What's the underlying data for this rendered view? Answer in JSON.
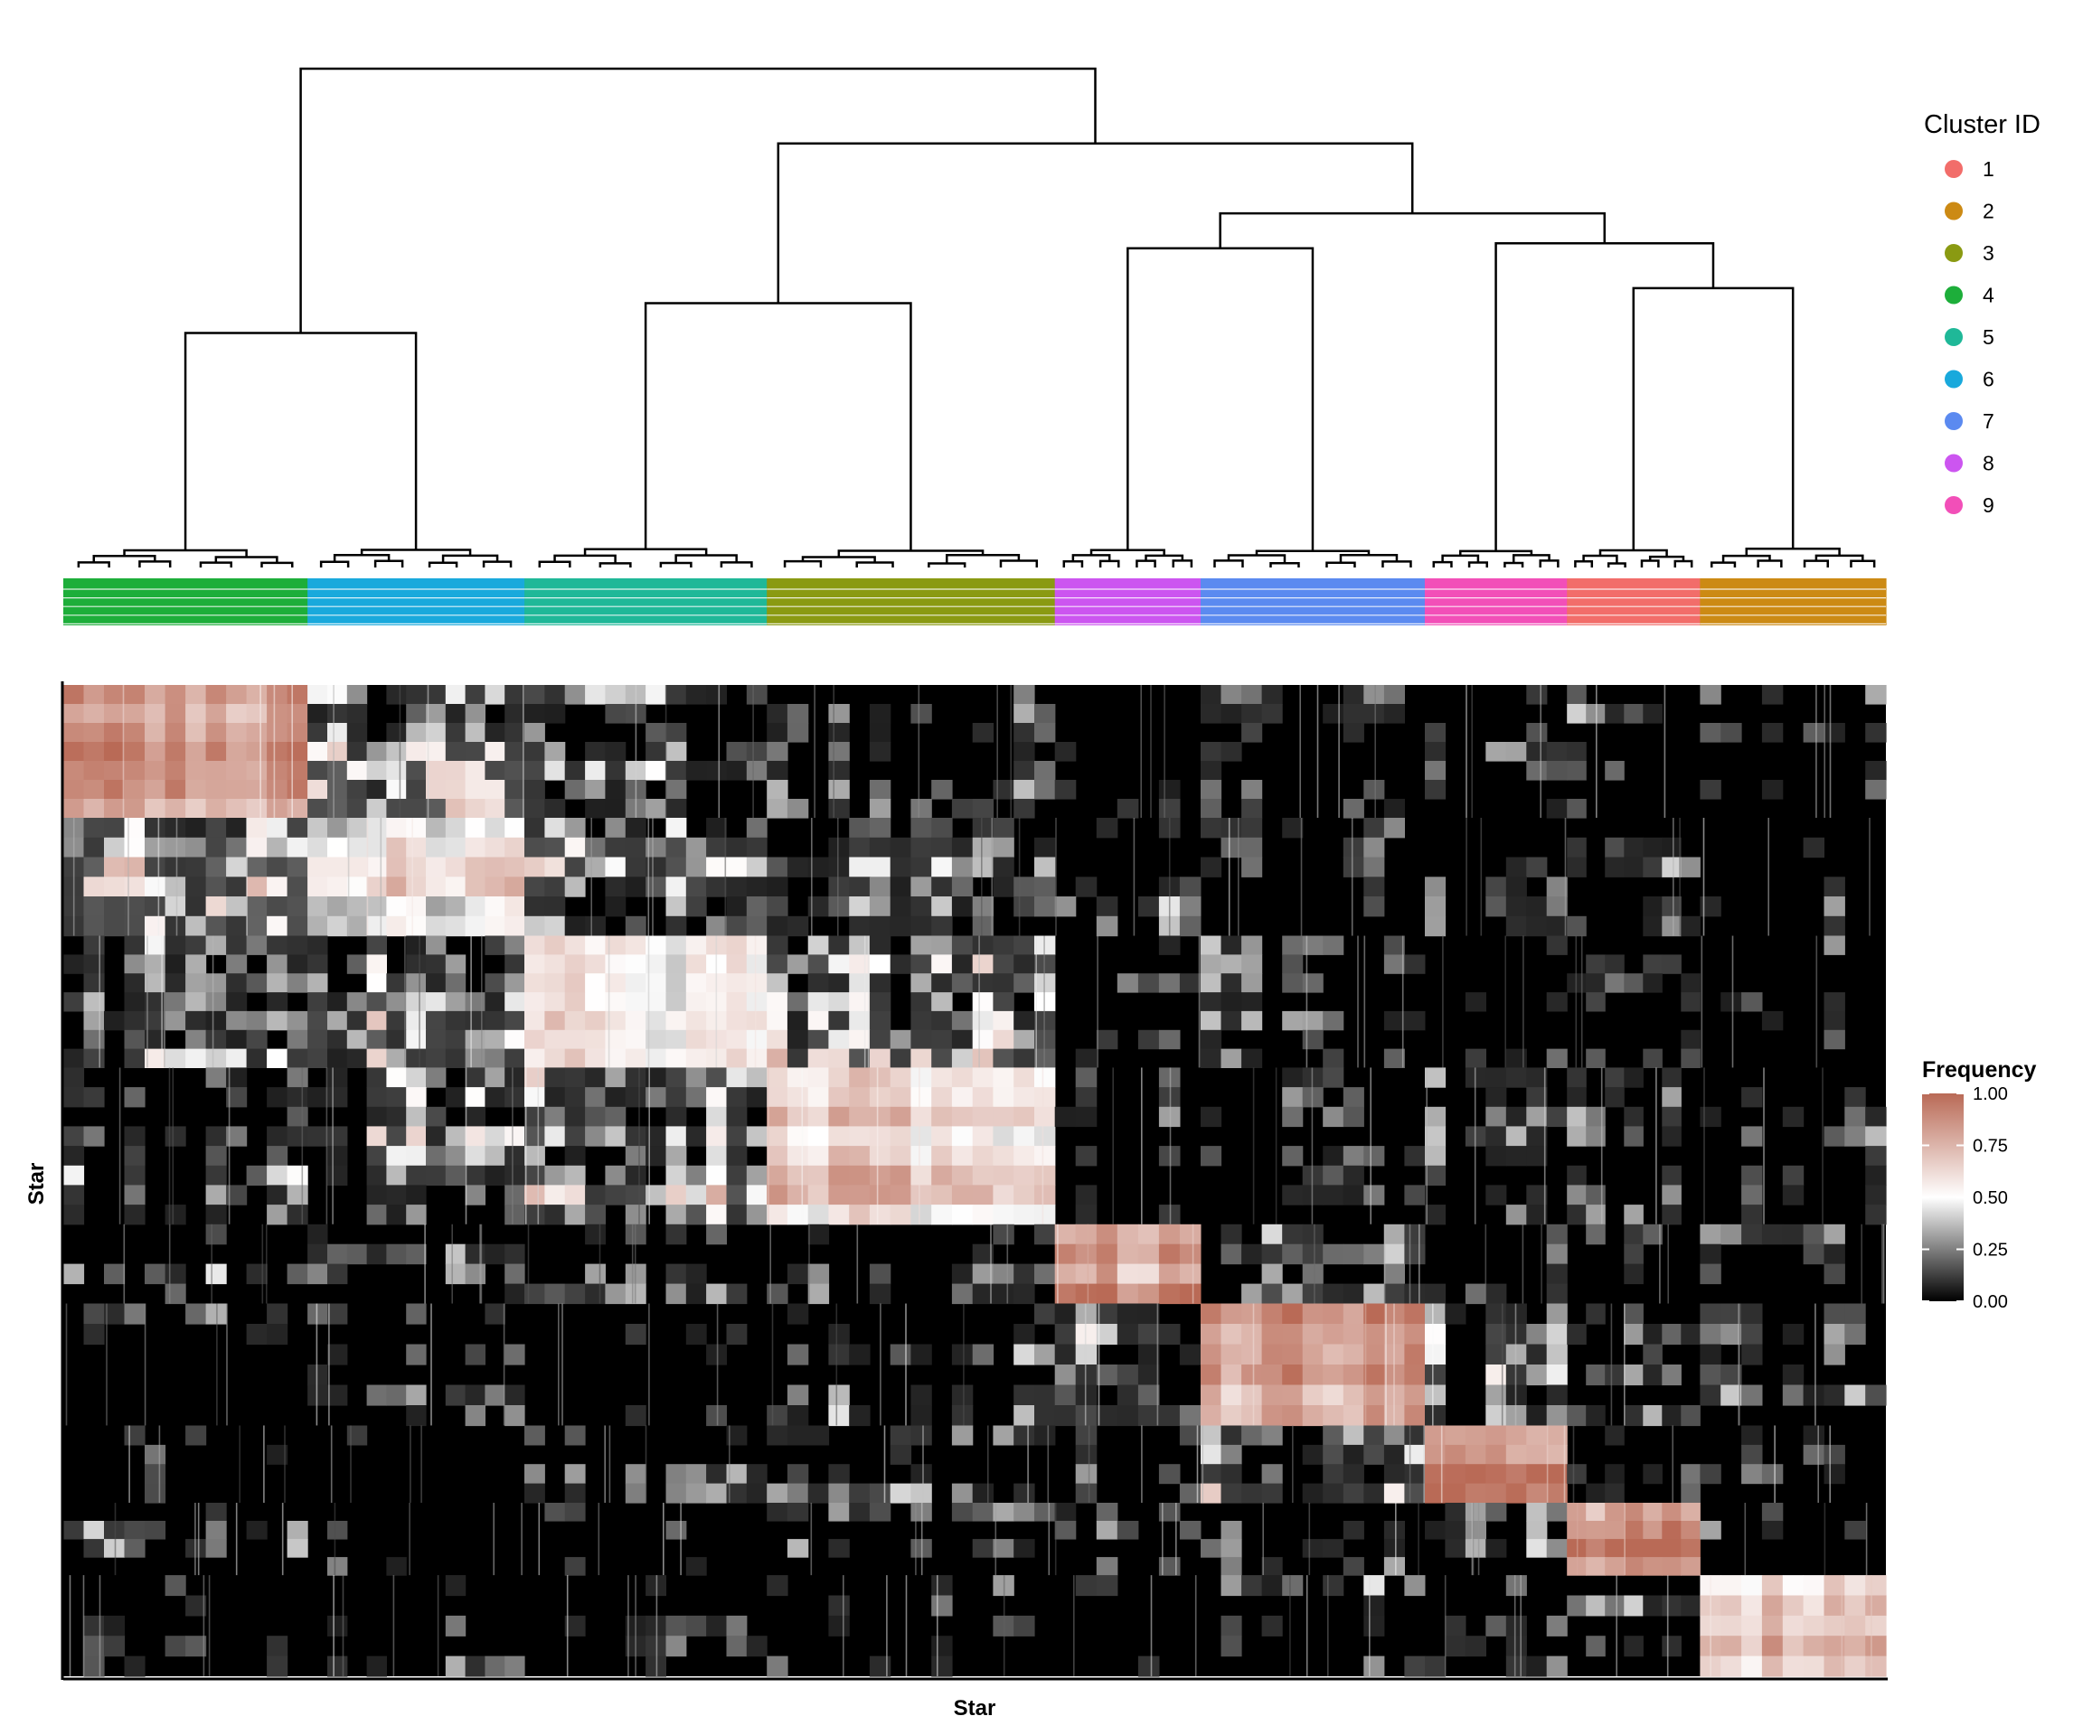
{
  "chart_data": {
    "type": "heatmap",
    "xlabel": "Star",
    "ylabel": "Star",
    "dendrogram": true,
    "cluster_legend": {
      "title": "Cluster ID",
      "entries": [
        {
          "id": "1",
          "color": "#F26D6A"
        },
        {
          "id": "2",
          "color": "#CC8A14"
        },
        {
          "id": "3",
          "color": "#8A9A12"
        },
        {
          "id": "4",
          "color": "#1DAE3A"
        },
        {
          "id": "5",
          "color": "#1FB898"
        },
        {
          "id": "6",
          "color": "#19A9DC"
        },
        {
          "id": "7",
          "color": "#5B8AF0"
        },
        {
          "id": "8",
          "color": "#CC55F0"
        },
        {
          "id": "9",
          "color": "#F24FB8"
        }
      ]
    },
    "cluster_order": [
      "4",
      "6",
      "5",
      "3",
      "8",
      "7",
      "9",
      "1",
      "2"
    ],
    "cluster_fractions": [
      0.134,
      0.119,
      0.133,
      0.158,
      0.08,
      0.123,
      0.078,
      0.073,
      0.102
    ],
    "color_scale": {
      "title": "Frequency",
      "min": 0.0,
      "max": 1.0,
      "ticks": [
        "0.00",
        "0.25",
        "0.50",
        "0.75",
        "1.00"
      ],
      "colors": [
        "#000000",
        "#ffffff",
        "#B96A56"
      ]
    },
    "mean_consensus_within_cluster": [
      0.8,
      0.55,
      0.6,
      0.65,
      0.85,
      0.8,
      0.9,
      0.85,
      0.7
    ]
  }
}
